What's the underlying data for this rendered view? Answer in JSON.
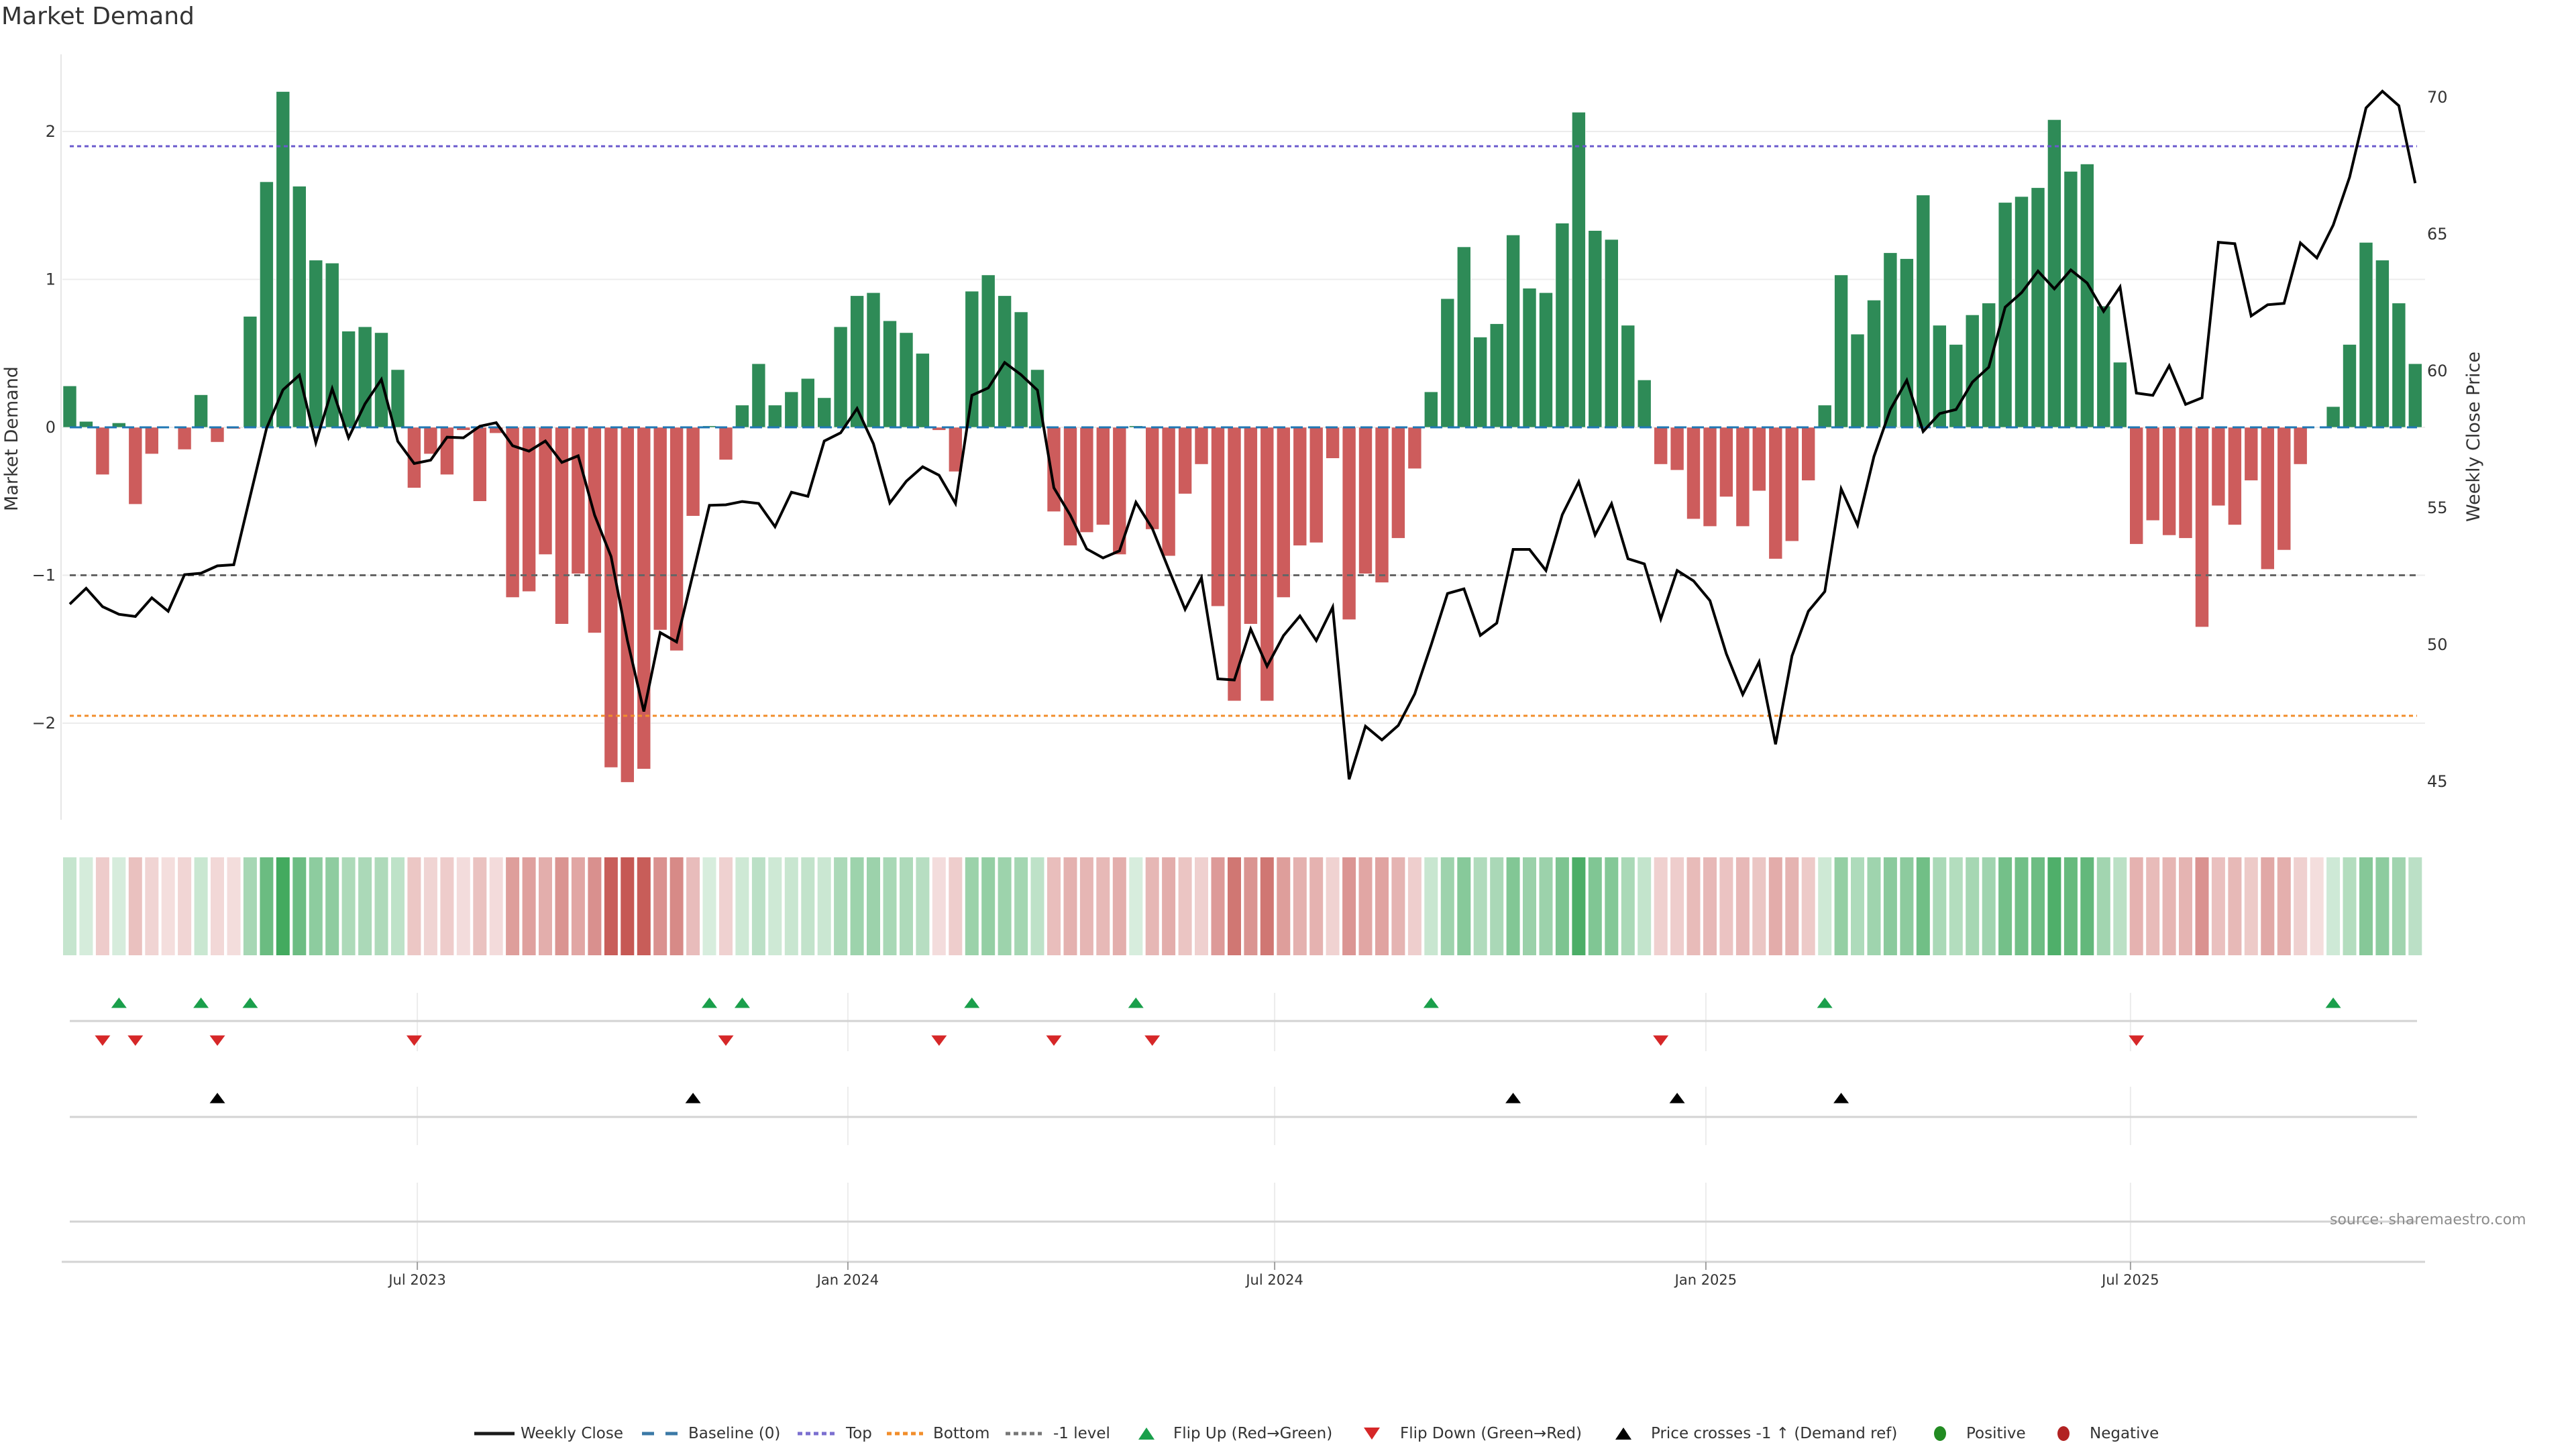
{
  "source": "source: sharemaestro.com",
  "colors": {
    "bar_positive": "#2e8b57",
    "bar_negative": "#cd5c5c",
    "price_line": "#000000",
    "baseline": "#1f77b4",
    "top": "#6a5acd",
    "bottom": "#f28e2b",
    "minus1": "#666666",
    "flip_up": "#1a9f4b",
    "flip_down": "#d62728",
    "price_cross": "#000000",
    "positive": "#228b22",
    "negative": "#b22222",
    "heat_positive": "#3aa658",
    "heat_negative": "#c65854"
  },
  "legend": [
    {
      "label": "Weekly Close",
      "icon": "solid-line-icon"
    },
    {
      "label": "Baseline (0)",
      "icon": "dashed-line-icon"
    },
    {
      "label": "Top",
      "icon": "dotted-line-icon"
    },
    {
      "label": "Bottom",
      "icon": "dotted-line-icon"
    },
    {
      "label": "-1 level",
      "icon": "dotted-line-icon"
    },
    {
      "label": "Flip Up (Red→Green)",
      "icon": "triangle-up-icon"
    },
    {
      "label": "Flip Down (Green→Red)",
      "icon": "triangle-down-icon"
    },
    {
      "label": "Price crosses -1 ↑ (Demand ref)",
      "icon": "triangle-up-icon"
    },
    {
      "label": "Positive",
      "icon": "circle-icon"
    },
    {
      "label": "Negative",
      "icon": "circle-icon"
    }
  ],
  "chart_data": {
    "type": "bar",
    "title": "Market Demand",
    "x_unit": "week index",
    "n_weeks": 144,
    "x_ticks": [
      {
        "pos": 21.19,
        "label": "Jul 2023"
      },
      {
        "pos": 47.44,
        "label": "Jan 2024"
      },
      {
        "pos": 73.46,
        "label": "Jul 2024"
      },
      {
        "pos": 99.75,
        "label": "Jan 2025"
      },
      {
        "pos": 125.64,
        "label": "Jul 2025"
      }
    ],
    "y_left": {
      "label": "Market Demand",
      "range": [
        -2.65,
        2.52
      ],
      "ticks": [
        2,
        1,
        0,
        -1,
        -2
      ],
      "tick_labels": [
        "2",
        "1",
        "0",
        "−1",
        "−2"
      ],
      "grid": true
    },
    "y_right": {
      "label": "Weekly Close Price",
      "range": [
        43.6,
        71.6
      ],
      "ticks": [
        70,
        65,
        60,
        55,
        50,
        45
      ],
      "tick_labels": [
        "70",
        "65",
        "60",
        "55",
        "50",
        "45"
      ]
    },
    "bars": [
      0.28,
      0.04,
      -0.32,
      0.03,
      -0.52,
      -0.18,
      0.0,
      -0.15,
      0.22,
      -0.1,
      -0.01,
      0.75,
      1.66,
      2.27,
      1.63,
      1.13,
      1.11,
      0.65,
      0.68,
      0.64,
      0.39,
      -0.41,
      -0.18,
      -0.32,
      -0.02,
      -0.5,
      -0.04,
      -1.15,
      -1.11,
      -0.86,
      -1.33,
      -0.99,
      -1.39,
      -2.3,
      -2.4,
      -2.31,
      -1.37,
      -1.51,
      -0.6,
      0.01,
      -0.22,
      0.15,
      0.43,
      0.15,
      0.24,
      0.33,
      0.2,
      0.68,
      0.89,
      0.91,
      0.72,
      0.64,
      0.5,
      -0.02,
      -0.3,
      0.92,
      1.03,
      0.89,
      0.78,
      0.39,
      -0.57,
      -0.8,
      -0.71,
      -0.66,
      -0.86,
      0.01,
      -0.69,
      -0.87,
      -0.45,
      -0.25,
      -1.21,
      -1.85,
      -1.33,
      -1.85,
      -1.15,
      -0.8,
      -0.78,
      -0.21,
      -1.3,
      -0.99,
      -1.05,
      -0.75,
      -0.28,
      0.24,
      0.87,
      1.22,
      0.61,
      0.7,
      1.3,
      0.94,
      0.91,
      1.38,
      2.13,
      1.33,
      1.27,
      0.69,
      0.32,
      -0.25,
      -0.29,
      -0.62,
      -0.67,
      -0.47,
      -0.67,
      -0.43,
      -0.89,
      -0.77,
      -0.36,
      0.15,
      1.03,
      0.63,
      0.86,
      1.18,
      1.14,
      1.57,
      0.69,
      0.56,
      0.76,
      0.84,
      1.52,
      1.56,
      1.62,
      2.08,
      1.73,
      1.78,
      0.82,
      0.44,
      -0.79,
      -0.63,
      -0.73,
      -0.75,
      -1.35,
      -0.53,
      -0.66,
      -0.36,
      -0.96,
      -0.83,
      -0.25,
      0.0,
      0.14,
      0.56,
      1.25,
      1.13,
      0.84,
      0.43
    ],
    "line": [
      51.48,
      52.06,
      51.39,
      51.11,
      51.03,
      51.71,
      51.22,
      52.56,
      52.61,
      52.88,
      52.92,
      55.42,
      57.91,
      59.31,
      59.85,
      57.38,
      59.35,
      57.56,
      58.8,
      59.69,
      57.43,
      56.62,
      56.74,
      57.58,
      57.56,
      57.98,
      58.11,
      57.27,
      57.07,
      57.44,
      56.66,
      56.9,
      54.73,
      53.22,
      50.15,
      47.56,
      50.44,
      50.1,
      52.59,
      55.09,
      55.11,
      55.23,
      55.16,
      54.31,
      55.57,
      55.42,
      57.44,
      57.74,
      58.63,
      57.34,
      55.18,
      55.97,
      56.5,
      56.19,
      55.16,
      59.11,
      59.38,
      60.31,
      59.86,
      59.3,
      55.73,
      54.73,
      53.5,
      53.17,
      53.43,
      55.2,
      54.25,
      52.76,
      51.29,
      52.44,
      48.75,
      48.71,
      50.57,
      49.21,
      50.33,
      51.05,
      50.15,
      51.37,
      45.08,
      47.02,
      46.52,
      47.05,
      48.2,
      49.98,
      51.87,
      52.04,
      50.34,
      50.79,
      53.48,
      53.48,
      52.71,
      54.75,
      55.95,
      54.01,
      55.15,
      53.14,
      52.95,
      50.94,
      52.71,
      52.33,
      51.61,
      49.67,
      48.18,
      49.37,
      46.36,
      49.59,
      51.22,
      51.94,
      55.69,
      54.37,
      56.88,
      58.59,
      59.66,
      57.79,
      58.44,
      58.59,
      59.59,
      60.14,
      62.33,
      62.86,
      63.65,
      63.0,
      63.69,
      63.21,
      62.18,
      63.07,
      59.19,
      59.11,
      60.19,
      58.78,
      59.02,
      64.7,
      64.65,
      62.01,
      62.42,
      62.47,
      64.68,
      64.13,
      65.33,
      67.08,
      69.61,
      70.22,
      69.69,
      66.86
    ],
    "reference_lines": {
      "baseline": 0,
      "top": 1.9,
      "bottom": -1.95,
      "minus1": -1
    },
    "events": {
      "flip_up": [
        3,
        8,
        11,
        39,
        41,
        55,
        65,
        83,
        107,
        138
      ],
      "flip_down": [
        2,
        4,
        9,
        21,
        40,
        53,
        60,
        66,
        97,
        126
      ],
      "price_cross_minus1_up": [
        9,
        38,
        88,
        98,
        108
      ]
    },
    "legend_position": "bottom-center"
  }
}
